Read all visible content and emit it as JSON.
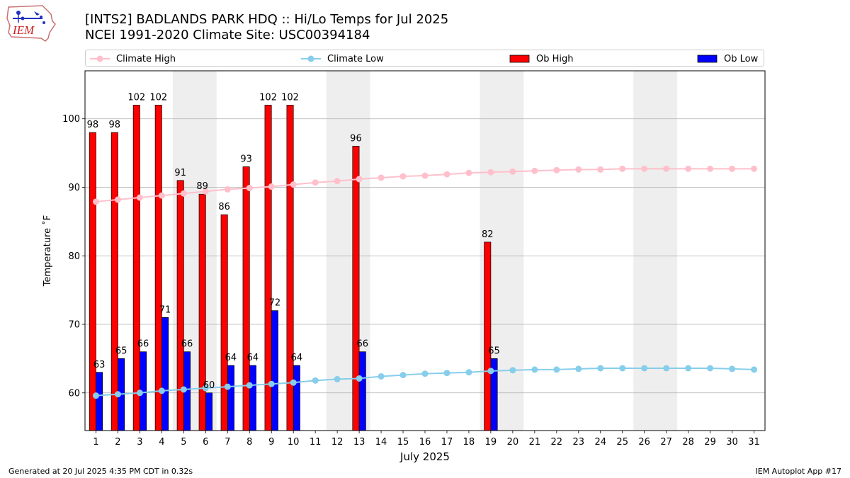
{
  "header": {
    "title_line1": "[INTS2] BADLANDS PARK HDQ :: Hi/Lo Temps for Jul 2025",
    "title_line2": "NCEI 1991-2020 Climate Site: USC00394184",
    "logo_text": "IEM"
  },
  "footer": {
    "generated": "Generated at 20 Jul 2025 4:35 PM CDT in 0.32s",
    "app": "IEM Autoplot App #17"
  },
  "colors": {
    "climate_high": "#ffc0cb",
    "climate_low": "#87ceeb",
    "ob_high": "#ff0000",
    "ob_low": "#0000ff",
    "weekend_band": "#eeeeee",
    "grid": "#b0b0b0"
  },
  "chart_data": {
    "type": "bar",
    "xlabel": "July 2025",
    "ylabel": "Temperature $^\\circ$F",
    "ylabel_display": "Temperature ˚F",
    "xlim": [
      0.5,
      31.5
    ],
    "ylim": [
      54.5,
      107
    ],
    "yticks": [
      60,
      70,
      80,
      90,
      100
    ],
    "x": [
      1,
      2,
      3,
      4,
      5,
      6,
      7,
      8,
      9,
      10,
      11,
      12,
      13,
      14,
      15,
      16,
      17,
      18,
      19,
      20,
      21,
      22,
      23,
      24,
      25,
      26,
      27,
      28,
      29,
      30,
      31
    ],
    "grid": "horizontal",
    "legend_placement": "top",
    "weekend_bands": [
      [
        5,
        6
      ],
      [
        12,
        13
      ],
      [
        19,
        20
      ],
      [
        26,
        27
      ]
    ],
    "series": [
      {
        "name": "Climate High",
        "kind": "line",
        "values": [
          87.9,
          88.2,
          88.5,
          88.8,
          89.1,
          89.4,
          89.7,
          89.9,
          90.1,
          90.4,
          90.7,
          90.9,
          91.2,
          91.4,
          91.6,
          91.7,
          91.9,
          92.1,
          92.2,
          92.3,
          92.4,
          92.5,
          92.6,
          92.6,
          92.7,
          92.7,
          92.7,
          92.7,
          92.7,
          92.7,
          92.7
        ]
      },
      {
        "name": "Climate Low",
        "kind": "line",
        "values": [
          59.6,
          59.8,
          60.0,
          60.3,
          60.5,
          60.7,
          60.9,
          61.1,
          61.3,
          61.5,
          61.8,
          62.0,
          62.1,
          62.4,
          62.6,
          62.8,
          62.9,
          63.0,
          63.2,
          63.3,
          63.4,
          63.4,
          63.5,
          63.6,
          63.6,
          63.6,
          63.6,
          63.6,
          63.6,
          63.5,
          63.4
        ]
      },
      {
        "name": "Ob High",
        "kind": "bar",
        "values": [
          98,
          98,
          102,
          102,
          91,
          89,
          86,
          93,
          102,
          102,
          null,
          null,
          96,
          null,
          null,
          null,
          null,
          null,
          82,
          null,
          null,
          null,
          null,
          null,
          null,
          null,
          null,
          null,
          null,
          null,
          null
        ]
      },
      {
        "name": "Ob Low",
        "kind": "bar",
        "values": [
          63,
          65,
          66,
          71,
          66,
          60,
          64,
          64,
          72,
          64,
          null,
          null,
          66,
          null,
          null,
          null,
          null,
          null,
          65,
          null,
          null,
          null,
          null,
          null,
          null,
          null,
          null,
          null,
          null,
          null,
          null
        ]
      }
    ]
  }
}
